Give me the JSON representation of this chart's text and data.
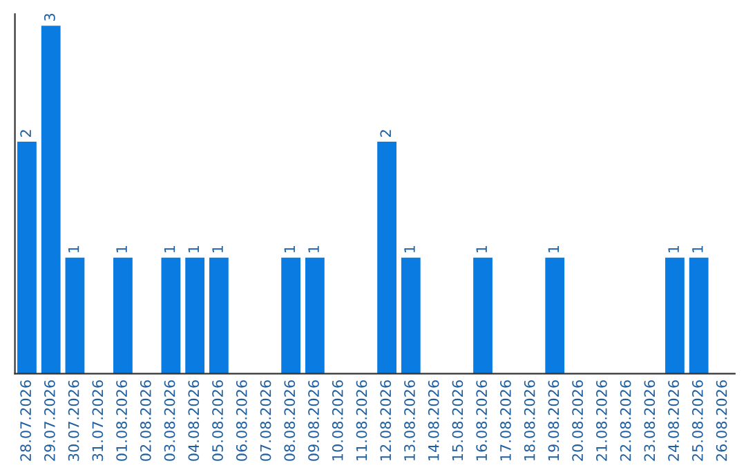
{
  "chart_data": {
    "type": "bar",
    "categories": [
      "28.07.2026",
      "29.07.2026",
      "30.07.2026",
      "31.07.2026",
      "01.08.2026",
      "02.08.2026",
      "03.08.2026",
      "04.08.2026",
      "05.08.2026",
      "06.08.2026",
      "07.08.2026",
      "08.08.2026",
      "09.08.2026",
      "10.08.2026",
      "11.08.2026",
      "12.08.2026",
      "13.08.2026",
      "14.08.2026",
      "15.08.2026",
      "16.08.2026",
      "17.08.2026",
      "18.08.2026",
      "19.08.2026",
      "20.08.2026",
      "21.08.2026",
      "22.08.2026",
      "23.08.2026",
      "24.08.2026",
      "25.08.2026",
      "26.08.2026"
    ],
    "values": [
      2,
      3,
      1,
      0,
      1,
      0,
      1,
      1,
      1,
      0,
      0,
      1,
      1,
      0,
      0,
      2,
      1,
      0,
      0,
      1,
      0,
      0,
      1,
      0,
      0,
      0,
      0,
      1,
      1,
      0
    ],
    "value_labels": [
      "2",
      "3",
      "1",
      null,
      "1",
      null,
      "1",
      "1",
      "1",
      null,
      null,
      "1",
      "1",
      null,
      null,
      "2",
      "1",
      null,
      null,
      "1",
      null,
      null,
      "1",
      null,
      null,
      null,
      null,
      "1",
      "1",
      null
    ],
    "color": "#0a7be0",
    "ylim": [
      0,
      3.1
    ],
    "tick_labels": "x",
    "grid": false
  }
}
